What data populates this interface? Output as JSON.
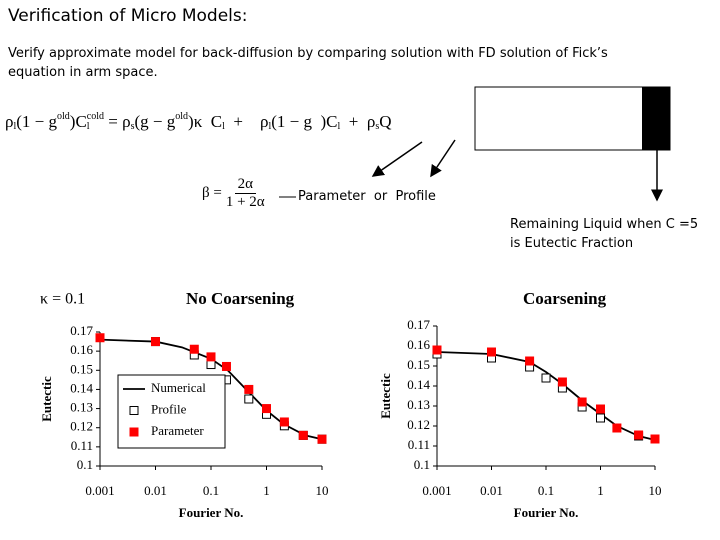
{
  "header": {
    "title": "Verification of Micro Models:",
    "subtitle": "Verify approximate model for back-diffusion by comparing solution with FD solution of Fick’s equation in arm space."
  },
  "equation": {
    "tokens": [
      {
        "text": "ρ",
        "sub": "l"
      },
      {
        "text": "(1 − g",
        "sup": "old"
      },
      {
        "text": ")C",
        "sup": "cold",
        "sub": "l"
      },
      {
        "text": " = ρ",
        "sub": "s"
      },
      {
        "text": "(g − g",
        "sup": "old"
      },
      {
        "text": ")κ  C",
        "sub": "l"
      },
      {
        "text": "  +    ρ",
        "sub": "l"
      },
      {
        "text": "(1 − g  )C",
        "sub": "l"
      },
      {
        "text": "  +  ρ",
        "sub": "s"
      },
      {
        "text": "Q"
      }
    ],
    "beta": {
      "lhs": "β =",
      "num": "2α",
      "den": "1 + 2α"
    }
  },
  "annotations": {
    "parameter_or_profile": "Parameter  or  Profile",
    "remaining_liquid": "Remaining Liquid  when C =5 is Eutectic Fraction"
  },
  "chart_data": [
    {
      "type": "line",
      "title": "No Coarsening",
      "annotation": "κ = 0.1",
      "xlabel": "Fourier No.",
      "ylabel": "Eutectic",
      "xscale": "log",
      "xlim": [
        0.001,
        10
      ],
      "xticks": [
        0.001,
        0.01,
        0.1,
        1,
        10
      ],
      "ylim": [
        0.1,
        0.17
      ],
      "yticks": [
        0.1,
        0.11,
        0.12,
        0.13,
        0.14,
        0.15,
        0.16,
        0.17
      ],
      "legend": "lower left",
      "series": [
        {
          "name": "Numerical",
          "style": "line",
          "color": "#000000",
          "x": [
            0.001,
            0.01,
            0.03,
            0.1,
            0.2,
            0.5,
            1,
            2,
            5,
            10
          ],
          "values": [
            0.166,
            0.165,
            0.162,
            0.156,
            0.15,
            0.138,
            0.129,
            0.122,
            0.116,
            0.114
          ]
        },
        {
          "name": "Profile",
          "style": "open-square",
          "color": "#000000",
          "x": [
            0.01,
            0.05,
            0.1,
            0.19,
            0.48,
            1,
            2.1,
            4.6,
            10
          ],
          "values": [
            0.165,
            0.158,
            0.153,
            0.145,
            0.135,
            0.127,
            0.121,
            0.116,
            0.114
          ]
        },
        {
          "name": "Parameter",
          "style": "square",
          "color": "#ff0000",
          "x": [
            0.001,
            0.01,
            0.05,
            0.1,
            0.19,
            0.48,
            1,
            2.1,
            4.6,
            10
          ],
          "values": [
            0.167,
            0.165,
            0.161,
            0.157,
            0.152,
            0.14,
            0.13,
            0.123,
            0.116,
            0.114
          ]
        }
      ]
    },
    {
      "type": "line",
      "title": "Coarsening",
      "xlabel": "Fourier No.",
      "ylabel": "Eutectic",
      "xscale": "log",
      "xlim": [
        0.001,
        10
      ],
      "xticks": [
        0.001,
        0.01,
        0.1,
        1,
        10
      ],
      "ylim": [
        0.1,
        0.17
      ],
      "yticks": [
        0.1,
        0.11,
        0.12,
        0.13,
        0.14,
        0.15,
        0.16,
        0.17
      ],
      "series": [
        {
          "name": "Numerical",
          "style": "line",
          "color": "#000000",
          "x": [
            0.001,
            0.01,
            0.05,
            0.1,
            0.2,
            0.5,
            1,
            2,
            5,
            10
          ],
          "values": [
            0.157,
            0.156,
            0.152,
            0.147,
            0.141,
            0.132,
            0.126,
            0.12,
            0.115,
            0.113
          ]
        },
        {
          "name": "Profile",
          "style": "open-square",
          "color": "#000000",
          "x": [
            0.001,
            0.01,
            0.05,
            0.1,
            0.2,
            0.46,
            1,
            5
          ],
          "values": [
            0.156,
            0.154,
            0.1495,
            0.144,
            0.139,
            0.1295,
            0.124,
            0.115
          ]
        },
        {
          "name": "Parameter",
          "style": "square",
          "color": "#ff0000",
          "x": [
            0.001,
            0.01,
            0.05,
            0.2,
            0.46,
            1,
            2,
            5,
            10
          ],
          "values": [
            0.158,
            0.157,
            0.1525,
            0.142,
            0.132,
            0.1285,
            0.119,
            0.1155,
            0.1135
          ]
        }
      ]
    }
  ]
}
